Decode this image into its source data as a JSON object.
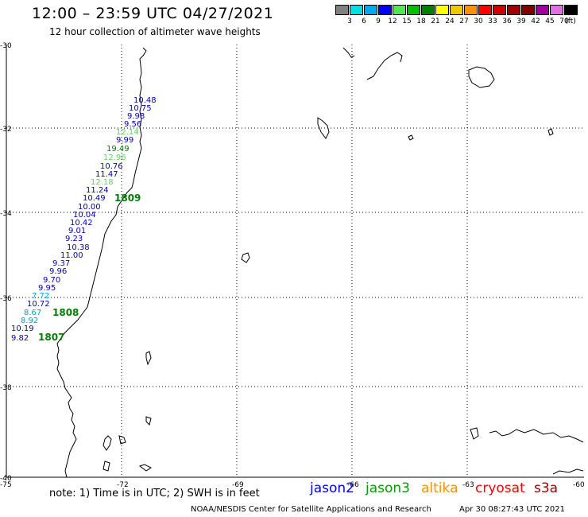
{
  "header": {
    "title": "12:00 – 23:59 UTC 04/27/2021",
    "subtitle": "12 hour collection of altimeter wave heights"
  },
  "legend": {
    "unit_label": "(ft)",
    "bins": [
      {
        "label": "",
        "color": "#808080"
      },
      {
        "label": "3",
        "color": "#00e0e0"
      },
      {
        "label": "6",
        "color": "#00a8f0"
      },
      {
        "label": "9",
        "color": "#0000ff"
      },
      {
        "label": "12",
        "color": "#50e850"
      },
      {
        "label": "15",
        "color": "#00c000"
      },
      {
        "label": "18",
        "color": "#008000"
      },
      {
        "label": "21",
        "color": "#ffff00"
      },
      {
        "label": "24",
        "color": "#f0c800"
      },
      {
        "label": "27",
        "color": "#ff9000"
      },
      {
        "label": "30",
        "color": "#ff0000"
      },
      {
        "label": "33",
        "color": "#d00000"
      },
      {
        "label": "36",
        "color": "#a00000"
      },
      {
        "label": "39",
        "color": "#800000"
      },
      {
        "label": "42",
        "color": "#a000a0"
      },
      {
        "label": "45",
        "color": "#e070e0"
      },
      {
        "label": "70",
        "color": "#000000"
      }
    ]
  },
  "map": {
    "lat_labels": [
      "-30",
      "-32",
      "-34",
      "-36",
      "-38",
      "-40"
    ],
    "lon_labels": [
      "-75",
      "-72",
      "-69",
      "-66",
      "-63",
      "-60"
    ],
    "observations": [
      {
        "value": "10.48",
        "color": "#0000c0"
      },
      {
        "value": "10.75",
        "color": "#0000c0"
      },
      {
        "value": "9.98",
        "color": "#0000c0"
      },
      {
        "value": "9.56",
        "color": "#0000c0"
      },
      {
        "value": "12.14",
        "color": "#60d860"
      },
      {
        "value": "9.99",
        "color": "#0000c0"
      },
      {
        "value": "19.49",
        "color": "#008000"
      },
      {
        "value": "12.96",
        "color": "#60d860"
      },
      {
        "value": "10.76",
        "color": "#0000c0"
      },
      {
        "value": "11.47",
        "color": "#0000c0"
      },
      {
        "value": "12.18",
        "color": "#60d860"
      },
      {
        "value": "11.24",
        "color": "#0000c0"
      },
      {
        "value": "10.49",
        "color": "#0000c0"
      },
      {
        "value": "10.00",
        "color": "#0000c0"
      },
      {
        "value": "10.04",
        "color": "#0000c0"
      },
      {
        "value": "10.42",
        "color": "#0000c0"
      },
      {
        "value": "9.01",
        "color": "#0000c0"
      },
      {
        "value": "9.23",
        "color": "#0000c0"
      },
      {
        "value": "10.38",
        "color": "#0000c0"
      },
      {
        "value": "11.00",
        "color": "#0000c0"
      },
      {
        "value": "9.37",
        "color": "#0000c0"
      },
      {
        "value": "9.96",
        "color": "#0000c0"
      },
      {
        "value": "9.70",
        "color": "#0000c0"
      },
      {
        "value": "9.95",
        "color": "#0000c0"
      },
      {
        "value": "7.72",
        "color": "#00b0e0"
      },
      {
        "value": "10.72",
        "color": "#0000c0"
      },
      {
        "value": "8.67",
        "color": "#00a0e0"
      },
      {
        "value": "8.92",
        "color": "#00a0e0"
      },
      {
        "value": "10.19",
        "color": "#0000c0"
      },
      {
        "value": "9.82",
        "color": "#0000c0"
      }
    ],
    "time_labels": [
      {
        "value": "1809",
        "color": "#008000"
      },
      {
        "value": "1808",
        "color": "#008000"
      },
      {
        "value": "1807",
        "color": "#008000"
      }
    ]
  },
  "footer": {
    "note": "note:  1) Time is in UTC; 2) SWH is in feet",
    "satellites": [
      {
        "name": "jason2",
        "color": "#0000ff"
      },
      {
        "name": "jason3",
        "color": "#00a000"
      },
      {
        "name": "altika",
        "color": "#ff9000"
      },
      {
        "name": "cryosat",
        "color": "#ff0000"
      },
      {
        "name": "s3a",
        "color": "#a00000"
      }
    ],
    "credit": "NOAA/NESDIS Center for Satellite Applications and Research",
    "timestamp": "Apr 30 08:27:43 UTC 2021"
  }
}
